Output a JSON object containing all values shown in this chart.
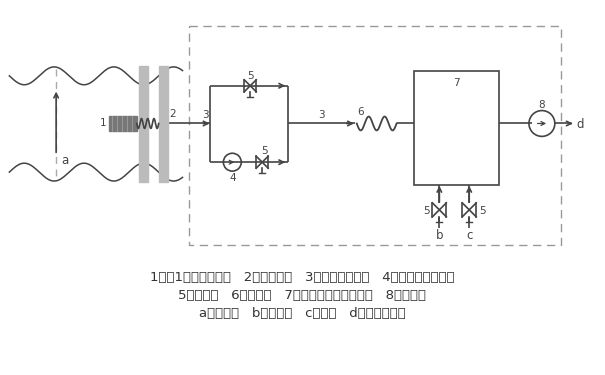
{
  "bg_color": "#ffffff",
  "line_color": "#444444",
  "gray_fill": "#bbbbbb",
  "dark_gray": "#777777",
  "legend_line1": "1、题1粒物过滤装置   2、采样探针   3、样品传输管线   4、分离单元崧化剂",
  "legend_line2": "5、控制阀   6、定量环   7、氢火焰离子化检测器   8、采样泵",
  "legend_line3": "a、样品气   b、燃料气   c、零气   d、采样泵排气",
  "font_size_legend": 9.5
}
